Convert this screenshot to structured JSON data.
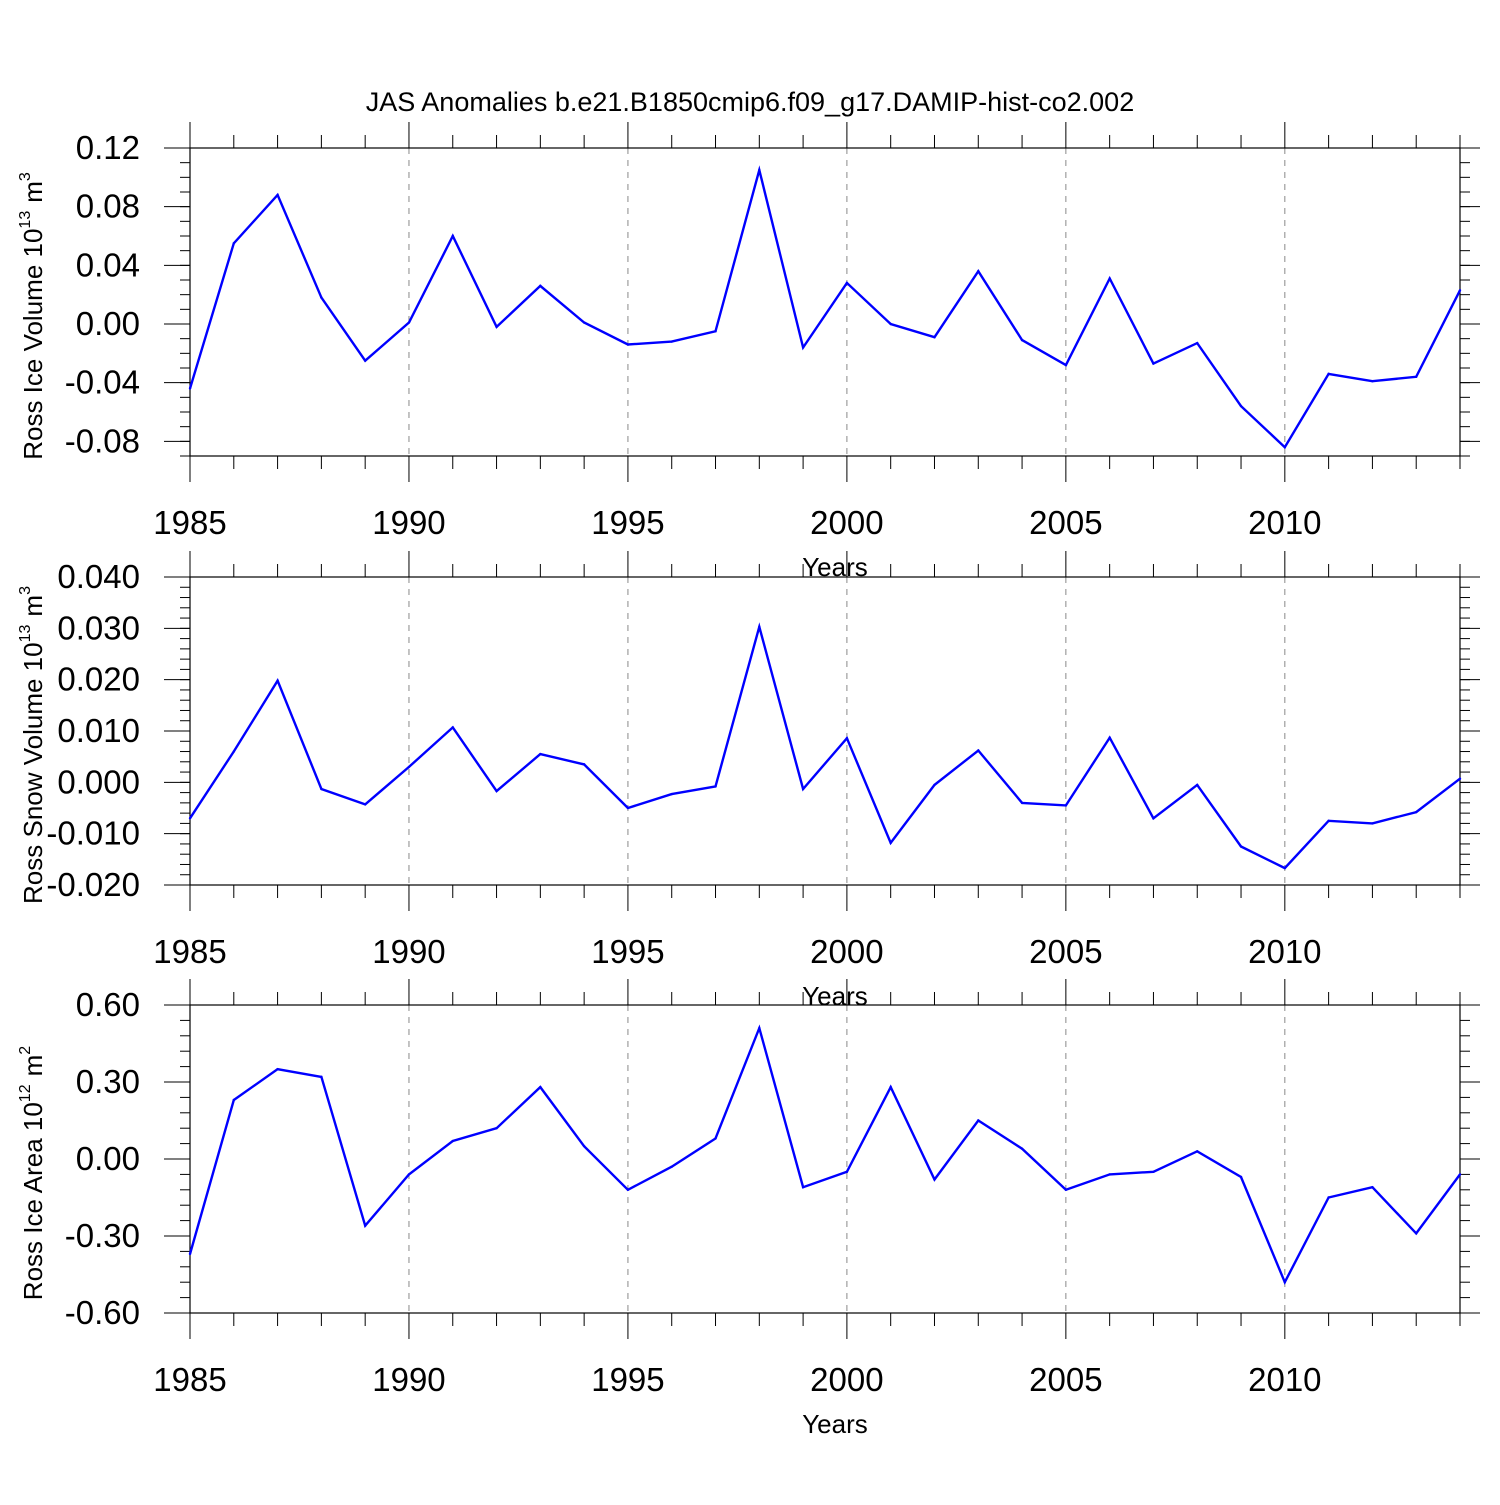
{
  "figure": {
    "title": "JAS Anomalies b.e21.B1850cmip6.f09_g17.DAMIP-hist-co2.002",
    "line_color": "#0000ff"
  },
  "chart_data": [
    {
      "type": "line",
      "xlabel": "Years",
      "ylabel_main": "Ross Ice Volume 10",
      "ylabel_sup": "13",
      "ylabel_unit": "m",
      "ylabel_unit_sup": "3",
      "xlim": [
        1985,
        2014
      ],
      "ylim": [
        -0.09,
        0.12
      ],
      "xticks": [
        1985,
        1990,
        1995,
        2000,
        2005,
        2010
      ],
      "yticks": [
        -0.08,
        -0.04,
        0.0,
        0.04,
        0.08,
        0.12
      ],
      "ytick_labels": [
        "-0.08",
        "-0.04",
        "0.00",
        "0.04",
        "0.08",
        "0.12"
      ],
      "x_minor_step": 1,
      "y_minor_step": 0.01,
      "grid": "dashed vertical at major x ticks",
      "series": [
        {
          "x": [
            1985,
            1986,
            1987,
            1988,
            1989,
            1990,
            1991,
            1992,
            1993,
            1994,
            1995,
            1996,
            1997,
            1998,
            1999,
            2000,
            2001,
            2002,
            2003,
            2004,
            2005,
            2006,
            2007,
            2008,
            2009,
            2010,
            2011,
            2012,
            2013,
            2014
          ],
          "values": [
            -0.044,
            0.055,
            0.088,
            0.018,
            -0.025,
            0.001,
            0.06,
            -0.002,
            0.026,
            0.001,
            -0.014,
            -0.012,
            -0.005,
            0.105,
            -0.016,
            0.028,
            0.0,
            -0.009,
            0.036,
            -0.011,
            -0.028,
            0.031,
            -0.027,
            -0.013,
            -0.056,
            -0.084,
            -0.034,
            -0.039,
            -0.036,
            0.023
          ]
        }
      ]
    },
    {
      "type": "line",
      "xlabel": "Years",
      "ylabel_main": "Ross Snow Volume 10",
      "ylabel_sup": "13",
      "ylabel_unit": "m",
      "ylabel_unit_sup": "3",
      "xlim": [
        1985,
        2014
      ],
      "ylim": [
        -0.02,
        0.04
      ],
      "xticks": [
        1985,
        1990,
        1995,
        2000,
        2005,
        2010
      ],
      "yticks": [
        -0.02,
        -0.01,
        0.0,
        0.01,
        0.02,
        0.03,
        0.04
      ],
      "ytick_labels": [
        "-0.020",
        "-0.010",
        "0.000",
        "0.010",
        "0.020",
        "0.030",
        "0.040"
      ],
      "x_minor_step": 1,
      "y_minor_step": 0.002,
      "grid": "dashed vertical at major x ticks",
      "series": [
        {
          "x": [
            1985,
            1986,
            1987,
            1988,
            1989,
            1990,
            1991,
            1992,
            1993,
            1994,
            1995,
            1996,
            1997,
            1998,
            1999,
            2000,
            2001,
            2002,
            2003,
            2004,
            2005,
            2006,
            2007,
            2008,
            2009,
            2010,
            2011,
            2012,
            2013,
            2014
          ],
          "values": [
            -0.007,
            0.006,
            0.0198,
            -0.0013,
            -0.0043,
            0.003,
            0.0107,
            -0.0017,
            0.0055,
            0.0035,
            -0.005,
            -0.0023,
            -0.0008,
            0.0303,
            -0.0013,
            0.0086,
            -0.0118,
            -0.0005,
            0.0062,
            -0.004,
            -0.0045,
            0.0087,
            -0.007,
            -0.0005,
            -0.0125,
            -0.0167,
            -0.0075,
            -0.008,
            -0.0058,
            0.0007
          ]
        }
      ]
    },
    {
      "type": "line",
      "xlabel": "Years",
      "ylabel_main": "Ross Ice Area 10",
      "ylabel_sup": "12",
      "ylabel_unit": "m",
      "ylabel_unit_sup": "2",
      "xlim": [
        1985,
        2014
      ],
      "ylim": [
        -0.6,
        0.6
      ],
      "xticks": [
        1985,
        1990,
        1995,
        2000,
        2005,
        2010
      ],
      "yticks": [
        -0.6,
        -0.3,
        0.0,
        0.3,
        0.6
      ],
      "ytick_labels": [
        "-0.60",
        "-0.30",
        "0.00",
        "0.30",
        "0.60"
      ],
      "x_minor_step": 1,
      "y_minor_step": 0.06,
      "grid": "dashed vertical at major x ticks",
      "series": [
        {
          "x": [
            1985,
            1986,
            1987,
            1988,
            1989,
            1990,
            1991,
            1992,
            1993,
            1994,
            1995,
            1996,
            1997,
            1998,
            1999,
            2000,
            2001,
            2002,
            2003,
            2004,
            2005,
            2006,
            2007,
            2008,
            2009,
            2010,
            2011,
            2012,
            2013,
            2014
          ],
          "values": [
            -0.37,
            0.23,
            0.35,
            0.32,
            -0.26,
            -0.06,
            0.07,
            0.12,
            0.28,
            0.05,
            -0.12,
            -0.03,
            0.08,
            0.51,
            -0.11,
            -0.05,
            0.28,
            -0.08,
            0.15,
            0.04,
            -0.12,
            -0.06,
            -0.05,
            0.03,
            -0.07,
            -0.48,
            -0.15,
            -0.11,
            -0.29,
            -0.06
          ]
        }
      ]
    }
  ]
}
